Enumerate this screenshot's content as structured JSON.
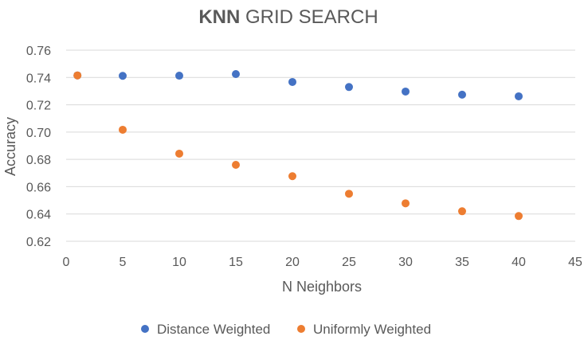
{
  "chart_data": {
    "type": "scatter",
    "title_bold": "KNN",
    "title_rest": " GRID SEARCH",
    "xlabel": "N Neighbors",
    "ylabel": "Accuracy",
    "xlim": [
      0,
      45
    ],
    "ylim": [
      0.62,
      0.76
    ],
    "x_ticks": [
      "0",
      "5",
      "10",
      "15",
      "20",
      "25",
      "30",
      "35",
      "40",
      "45"
    ],
    "y_ticks": [
      "0.62",
      "0.64",
      "0.66",
      "0.68",
      "0.70",
      "0.72",
      "0.74",
      "0.76"
    ],
    "grid": "horizontal",
    "legend_position": "bottom",
    "series": [
      {
        "name": "Distance Weighted",
        "color": "#4472C4",
        "x": [
          1,
          5,
          10,
          15,
          20,
          25,
          30,
          35,
          40
        ],
        "y": [
          0.7415,
          0.7412,
          0.7413,
          0.7425,
          0.7367,
          0.733,
          0.7297,
          0.7274,
          0.7262
        ]
      },
      {
        "name": "Uniformly Weighted",
        "color": "#ED7D31",
        "x": [
          1,
          5,
          10,
          15,
          20,
          25,
          30,
          35,
          40
        ],
        "y": [
          0.7415,
          0.7017,
          0.6842,
          0.676,
          0.6677,
          0.6548,
          0.6478,
          0.642,
          0.6385
        ]
      }
    ]
  }
}
